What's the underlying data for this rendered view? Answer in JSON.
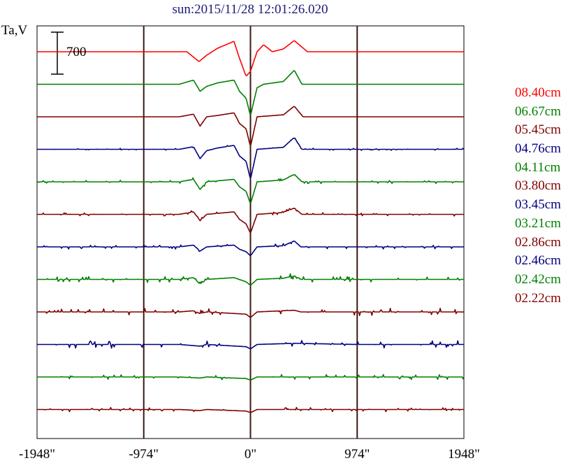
{
  "chart_data": {
    "type": "line",
    "title": "sun:2015/11/28 12:01:26.020",
    "ylabel": "Ta,V",
    "scale_bar_label": "700",
    "x_ticks": [
      "-1948\"",
      "-974\"",
      "0\"",
      "974\"",
      "1948\""
    ],
    "x_tick_values": [
      -1948,
      -974,
      0,
      974,
      1948
    ],
    "xlim": [
      -1948,
      1948
    ],
    "vlines": [
      -974,
      0,
      974
    ],
    "grid": false,
    "legend_position": "right",
    "series": [
      {
        "name": "08.40cm",
        "color": "#ff0000",
        "amp": 1.0,
        "noise": 0.0,
        "shape": [
          [
            -974,
            0
          ],
          [
            -700,
            0
          ],
          [
            -580,
            0
          ],
          [
            -470,
            -14
          ],
          [
            -400,
            -5
          ],
          [
            -300,
            5
          ],
          [
            -150,
            15
          ],
          [
            -110,
            -5
          ],
          [
            -40,
            -35
          ],
          [
            0,
            -28
          ],
          [
            60,
            0
          ],
          [
            120,
            10
          ],
          [
            200,
            0
          ],
          [
            300,
            4
          ],
          [
            400,
            16
          ],
          [
            520,
            0
          ],
          [
            974,
            0
          ]
        ]
      },
      {
        "name": "06.67cm",
        "color": "#008000",
        "amp": 1.0,
        "noise": 0.0,
        "shape": [
          [
            -974,
            0
          ],
          [
            -650,
            0
          ],
          [
            -520,
            6
          ],
          [
            -460,
            -10
          ],
          [
            -400,
            -3
          ],
          [
            -300,
            2
          ],
          [
            -150,
            6
          ],
          [
            -100,
            -10
          ],
          [
            -40,
            -20
          ],
          [
            0,
            -45
          ],
          [
            60,
            -5
          ],
          [
            120,
            0
          ],
          [
            300,
            4
          ],
          [
            400,
            20
          ],
          [
            470,
            0
          ],
          [
            974,
            0
          ]
        ]
      },
      {
        "name": "05.45cm",
        "color": "#800000",
        "amp": 0.95,
        "noise": 0.0,
        "shape": [
          [
            -974,
            0
          ],
          [
            -650,
            0
          ],
          [
            -520,
            4
          ],
          [
            -460,
            -14
          ],
          [
            -400,
            0
          ],
          [
            -300,
            2
          ],
          [
            -150,
            6
          ],
          [
            -100,
            -10
          ],
          [
            -40,
            -18
          ],
          [
            0,
            -45
          ],
          [
            60,
            0
          ],
          [
            300,
            3
          ],
          [
            400,
            16
          ],
          [
            480,
            0
          ],
          [
            974,
            0
          ]
        ]
      },
      {
        "name": "04.76cm",
        "color": "#000080",
        "amp": 0.95,
        "noise": 0.5,
        "shape": [
          [
            -974,
            0
          ],
          [
            -650,
            0
          ],
          [
            -520,
            4
          ],
          [
            -460,
            -14
          ],
          [
            -400,
            -2
          ],
          [
            -300,
            2
          ],
          [
            -150,
            6
          ],
          [
            -100,
            -10
          ],
          [
            -40,
            -18
          ],
          [
            0,
            -45
          ],
          [
            60,
            0
          ],
          [
            300,
            3
          ],
          [
            400,
            18
          ],
          [
            470,
            0
          ],
          [
            974,
            0
          ]
        ]
      },
      {
        "name": "04.11cm",
        "color": "#008000",
        "amp": 0.9,
        "noise": 0.8,
        "shape": [
          [
            -974,
            0
          ],
          [
            -650,
            0
          ],
          [
            -520,
            4
          ],
          [
            -460,
            -12
          ],
          [
            -400,
            0
          ],
          [
            -150,
            4
          ],
          [
            -100,
            -8
          ],
          [
            -40,
            -15
          ],
          [
            0,
            -35
          ],
          [
            60,
            0
          ],
          [
            300,
            3
          ],
          [
            400,
            12
          ],
          [
            470,
            0
          ],
          [
            974,
            0
          ]
        ]
      },
      {
        "name": "03.80cm",
        "color": "#800000",
        "amp": 0.9,
        "noise": 0.8,
        "shape": [
          [
            -974,
            0
          ],
          [
            -650,
            0
          ],
          [
            -520,
            4
          ],
          [
            -460,
            -10
          ],
          [
            -400,
            0
          ],
          [
            -150,
            4
          ],
          [
            -100,
            -8
          ],
          [
            -40,
            -15
          ],
          [
            0,
            -30
          ],
          [
            60,
            0
          ],
          [
            300,
            3
          ],
          [
            400,
            10
          ],
          [
            470,
            0
          ],
          [
            974,
            0
          ]
        ]
      },
      {
        "name": "03.45cm",
        "color": "#000080",
        "amp": 0.85,
        "noise": 1.0,
        "shape": [
          [
            -974,
            0
          ],
          [
            -650,
            0
          ],
          [
            -520,
            3
          ],
          [
            -460,
            -7
          ],
          [
            -400,
            0
          ],
          [
            -150,
            3
          ],
          [
            -100,
            -4
          ],
          [
            -40,
            -8
          ],
          [
            0,
            -15
          ],
          [
            60,
            0
          ],
          [
            300,
            2
          ],
          [
            400,
            10
          ],
          [
            460,
            0
          ],
          [
            974,
            0
          ]
        ]
      },
      {
        "name": "03.21cm",
        "color": "#008000",
        "amp": 0.85,
        "noise": 1.4,
        "shape": [
          [
            -974,
            0
          ],
          [
            -650,
            0
          ],
          [
            -520,
            3
          ],
          [
            -460,
            -8
          ],
          [
            -400,
            0
          ],
          [
            -150,
            3
          ],
          [
            -40,
            -4
          ],
          [
            0,
            -10
          ],
          [
            60,
            0
          ],
          [
            300,
            2
          ],
          [
            400,
            6
          ],
          [
            460,
            0
          ],
          [
            974,
            0
          ]
        ]
      },
      {
        "name": "02.86cm",
        "color": "#800000",
        "amp": 0.8,
        "noise": 1.8,
        "shape": [
          [
            -974,
            0
          ],
          [
            -650,
            0
          ],
          [
            -520,
            2
          ],
          [
            -460,
            -3
          ],
          [
            -400,
            0
          ],
          [
            -40,
            -4
          ],
          [
            0,
            -10
          ],
          [
            60,
            0
          ],
          [
            400,
            3
          ],
          [
            460,
            0
          ],
          [
            974,
            0
          ]
        ]
      },
      {
        "name": "02.46cm",
        "color": "#000080",
        "amp": 0.8,
        "noise": 1.8,
        "shape": [
          [
            -974,
            0
          ],
          [
            -650,
            0
          ],
          [
            -460,
            -3
          ],
          [
            -400,
            0
          ],
          [
            -40,
            -4
          ],
          [
            0,
            -8
          ],
          [
            60,
            0
          ],
          [
            400,
            2
          ],
          [
            974,
            0
          ]
        ]
      },
      {
        "name": "02.42cm",
        "color": "#008000",
        "amp": 0.75,
        "noise": 1.2,
        "shape": [
          [
            -974,
            0
          ],
          [
            -650,
            0
          ],
          [
            -460,
            -2
          ],
          [
            -400,
            0
          ],
          [
            -40,
            -3
          ],
          [
            0,
            -6
          ],
          [
            60,
            0
          ],
          [
            974,
            0
          ]
        ]
      },
      {
        "name": "02.22cm",
        "color": "#800000",
        "amp": 0.75,
        "noise": 1.0,
        "shape": [
          [
            -974,
            0
          ],
          [
            -650,
            0
          ],
          [
            -460,
            -2
          ],
          [
            -400,
            0
          ],
          [
            -40,
            -3
          ],
          [
            0,
            -6
          ],
          [
            60,
            0
          ],
          [
            974,
            0
          ]
        ]
      }
    ]
  }
}
